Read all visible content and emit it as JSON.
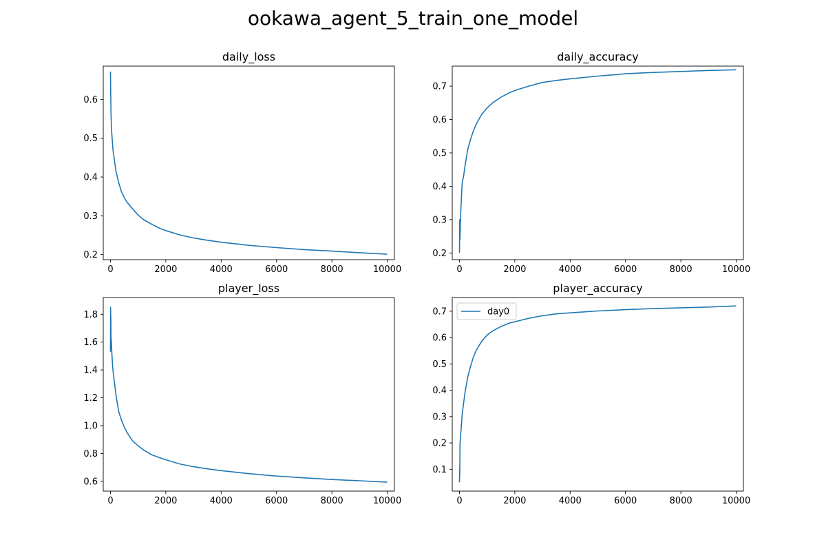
{
  "figure": {
    "suptitle": "ookawa_agent_5_train_one_model"
  },
  "chart_data": [
    {
      "type": "line",
      "title": "daily_loss",
      "xlim": [
        -260,
        10260
      ],
      "ylim": [
        0.187,
        0.686
      ],
      "xticks": [
        0,
        2000,
        4000,
        6000,
        8000,
        10000
      ],
      "yticks": [
        0.2,
        0.3,
        0.4,
        0.5,
        0.6
      ],
      "ytick_labels": [
        "0.2",
        "0.3",
        "0.4",
        "0.5",
        "0.6"
      ],
      "legend": null,
      "series": [
        {
          "color": "#1f77b4",
          "x": [
            0,
            5,
            10,
            20,
            40,
            60,
            80,
            100,
            150,
            200,
            300,
            400,
            500,
            600,
            800,
            1000,
            1200,
            1500,
            1800,
            2000,
            2500,
            3000,
            3500,
            4000,
            5000,
            6000,
            7000,
            8000,
            9000,
            10000
          ],
          "y": [
            0.672,
            0.64,
            0.61,
            0.56,
            0.52,
            0.5,
            0.48,
            0.465,
            0.44,
            0.415,
            0.385,
            0.362,
            0.347,
            0.335,
            0.318,
            0.302,
            0.29,
            0.278,
            0.267,
            0.262,
            0.251,
            0.243,
            0.237,
            0.232,
            0.224,
            0.218,
            0.213,
            0.209,
            0.205,
            0.201
          ]
        }
      ]
    },
    {
      "type": "line",
      "title": "daily_accuracy",
      "xlim": [
        -260,
        10260
      ],
      "ylim": [
        0.18,
        0.76
      ],
      "xticks": [
        0,
        2000,
        4000,
        6000,
        8000,
        10000
      ],
      "yticks": [
        0.2,
        0.3,
        0.4,
        0.5,
        0.6,
        0.7
      ],
      "ytick_labels": [
        "0.2",
        "0.3",
        "0.4",
        "0.5",
        "0.6",
        "0.7"
      ],
      "legend": null,
      "series": [
        {
          "color": "#1f77b4",
          "x": [
            0,
            5,
            10,
            20,
            30,
            50,
            80,
            100,
            150,
            200,
            300,
            400,
            500,
            600,
            800,
            1000,
            1200,
            1500,
            1800,
            2000,
            2500,
            3000,
            3500,
            4000,
            5000,
            6000,
            7000,
            8000,
            9000,
            10000
          ],
          "y": [
            0.2,
            0.25,
            0.3,
            0.24,
            0.28,
            0.33,
            0.38,
            0.41,
            0.43,
            0.46,
            0.51,
            0.54,
            0.565,
            0.585,
            0.615,
            0.635,
            0.65,
            0.667,
            0.68,
            0.687,
            0.7,
            0.711,
            0.717,
            0.722,
            0.73,
            0.737,
            0.741,
            0.744,
            0.747,
            0.749
          ]
        }
      ]
    },
    {
      "type": "line",
      "title": "player_loss",
      "xlim": [
        -260,
        10260
      ],
      "ylim": [
        0.53,
        1.92
      ],
      "xticks": [
        0,
        2000,
        4000,
        6000,
        8000,
        10000
      ],
      "yticks": [
        0.6,
        0.8,
        1.0,
        1.2,
        1.4,
        1.6,
        1.8
      ],
      "ytick_labels": [
        "0.6",
        "0.8",
        "1.0",
        "1.2",
        "1.4",
        "1.6",
        "1.8"
      ],
      "legend": null,
      "series": [
        {
          "color": "#1f77b4",
          "x": [
            0,
            5,
            10,
            15,
            20,
            30,
            50,
            80,
            100,
            150,
            200,
            300,
            400,
            500,
            600,
            800,
            1000,
            1200,
            1500,
            1800,
            2000,
            2500,
            3000,
            3500,
            4000,
            5000,
            6000,
            7000,
            8000,
            9000,
            10000
          ],
          "y": [
            1.53,
            1.85,
            1.7,
            1.78,
            1.6,
            1.62,
            1.52,
            1.42,
            1.38,
            1.3,
            1.22,
            1.1,
            1.04,
            0.99,
            0.95,
            0.89,
            0.855,
            0.825,
            0.79,
            0.768,
            0.755,
            0.725,
            0.705,
            0.69,
            0.677,
            0.655,
            0.638,
            0.625,
            0.613,
            0.604,
            0.594
          ]
        }
      ]
    },
    {
      "type": "line",
      "title": "player_accuracy",
      "xlim": [
        -260,
        10260
      ],
      "ylim": [
        0.017,
        0.752
      ],
      "xticks": [
        0,
        2000,
        4000,
        6000,
        8000,
        10000
      ],
      "yticks": [
        0.1,
        0.2,
        0.3,
        0.4,
        0.5,
        0.6,
        0.7
      ],
      "ytick_labels": [
        "0.1",
        "0.2",
        "0.3",
        "0.4",
        "0.5",
        "0.6",
        "0.7"
      ],
      "legend": {
        "position": "upper left",
        "entries": [
          "day0"
        ]
      },
      "series": [
        {
          "name": "day0",
          "color": "#1f77b4",
          "x": [
            0,
            5,
            10,
            20,
            30,
            50,
            80,
            100,
            150,
            200,
            300,
            400,
            500,
            600,
            800,
            1000,
            1200,
            1500,
            1800,
            2000,
            2500,
            3000,
            3500,
            4000,
            5000,
            6000,
            7000,
            8000,
            9000,
            10000
          ],
          "y": [
            0.05,
            0.1,
            0.07,
            0.2,
            0.21,
            0.24,
            0.28,
            0.31,
            0.35,
            0.39,
            0.45,
            0.49,
            0.525,
            0.55,
            0.585,
            0.61,
            0.625,
            0.642,
            0.655,
            0.66,
            0.673,
            0.683,
            0.69,
            0.694,
            0.701,
            0.706,
            0.71,
            0.713,
            0.716,
            0.72
          ]
        }
      ]
    }
  ]
}
